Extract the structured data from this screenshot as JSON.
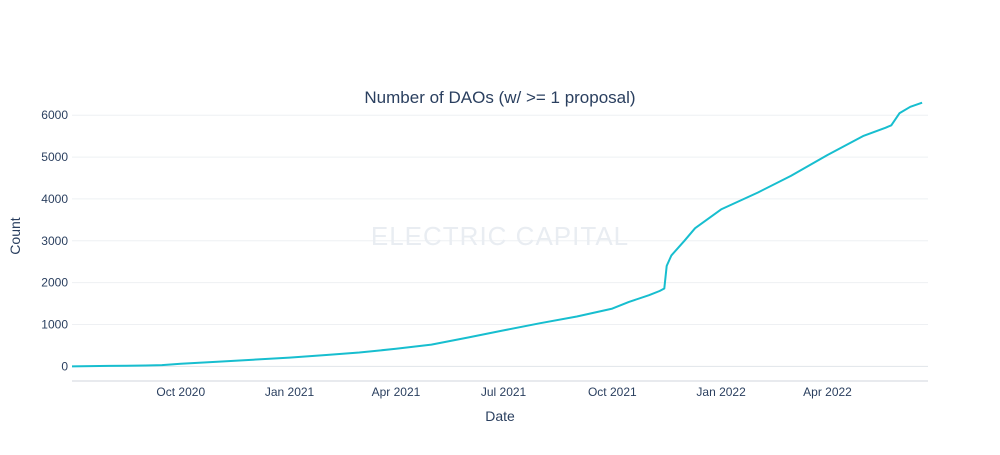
{
  "chart_data": {
    "type": "line",
    "title": "Number of DAOs (w/ >= 1 proposal)",
    "xlabel": "Date",
    "ylabel": "Count",
    "watermark": "ELECTRIC CAPITAL",
    "xlim": [
      "2020-07-01",
      "2022-06-25"
    ],
    "ylim": [
      -350,
      6650
    ],
    "x_ticks": [
      {
        "date": "2020-10-01",
        "label": "Oct 2020"
      },
      {
        "date": "2021-01-01",
        "label": "Jan 2021"
      },
      {
        "date": "2021-04-01",
        "label": "Apr 2021"
      },
      {
        "date": "2021-07-01",
        "label": "Jul 2021"
      },
      {
        "date": "2021-10-01",
        "label": "Oct 2021"
      },
      {
        "date": "2022-01-01",
        "label": "Jan 2022"
      },
      {
        "date": "2022-04-01",
        "label": "Apr 2022"
      }
    ],
    "y_ticks": [
      0,
      1000,
      2000,
      3000,
      4000,
      5000,
      6000
    ],
    "grid": true,
    "legend": "none",
    "line_color": "#17becf",
    "series": [
      {
        "x": [
          "2020-07-01",
          "2020-08-01",
          "2020-09-01",
          "2020-09-15",
          "2020-10-01",
          "2020-11-01",
          "2020-12-01",
          "2021-01-01",
          "2021-02-01",
          "2021-03-01",
          "2021-04-01",
          "2021-05-01",
          "2021-06-01",
          "2021-07-01",
          "2021-08-01",
          "2021-09-01",
          "2021-10-01",
          "2021-10-15",
          "2021-11-01",
          "2021-11-10",
          "2021-11-14",
          "2021-11-16",
          "2021-11-20",
          "2021-12-01",
          "2021-12-10",
          "2022-01-01",
          "2022-02-01",
          "2022-03-01",
          "2022-04-01",
          "2022-05-01",
          "2022-05-20",
          "2022-05-25",
          "2022-06-01",
          "2022-06-10",
          "2022-06-20"
        ],
        "y": [
          0,
          10,
          20,
          30,
          60,
          110,
          160,
          210,
          270,
          330,
          420,
          520,
          690,
          860,
          1030,
          1190,
          1380,
          1540,
          1700,
          1800,
          1860,
          2400,
          2650,
          3000,
          3300,
          3750,
          4150,
          4550,
          5050,
          5500,
          5700,
          5760,
          6050,
          6200,
          6300
        ]
      }
    ]
  }
}
